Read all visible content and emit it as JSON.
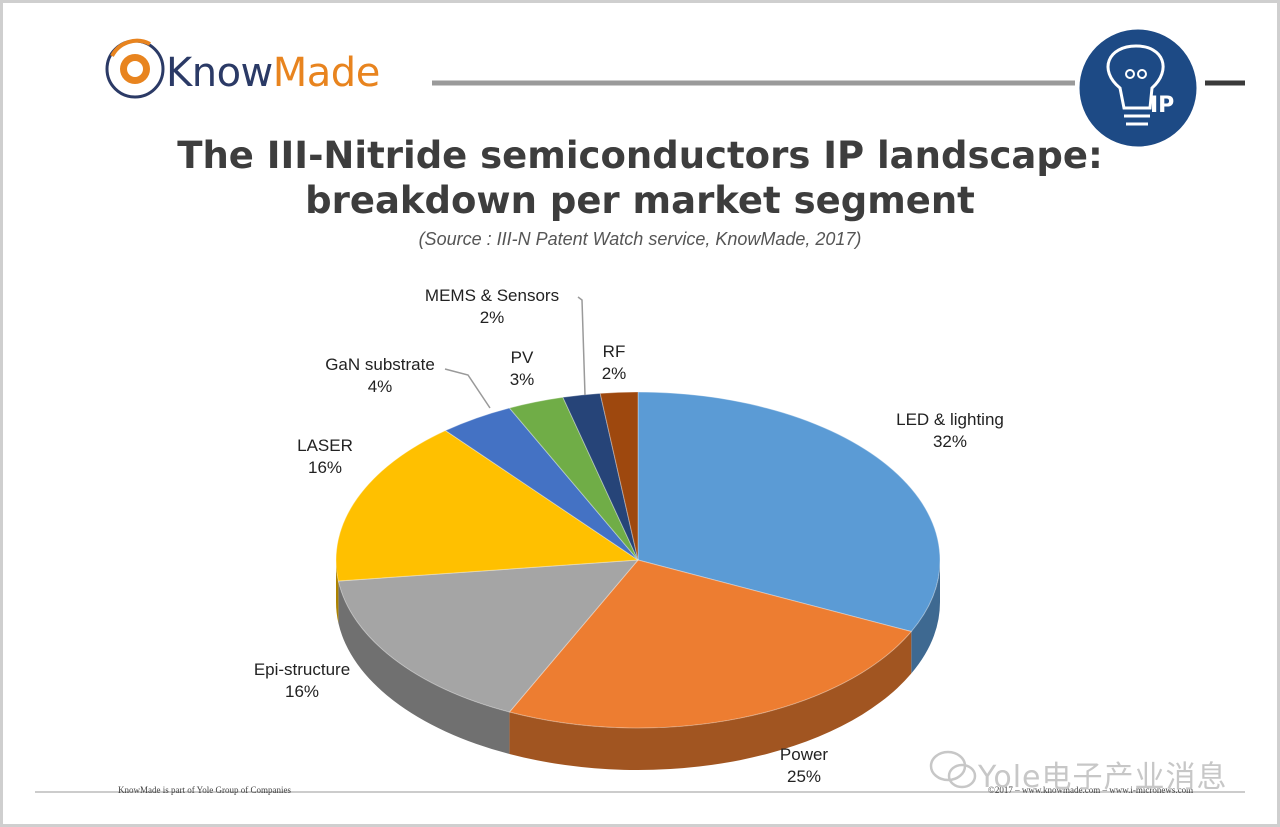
{
  "header": {
    "logo_part1": "Know",
    "logo_part2": "Made",
    "badge": "IP"
  },
  "colors": {
    "logo_blue": "#2b3a66",
    "logo_orange": "#e8841f",
    "badge_blue": "#1d4a85"
  },
  "chart_data": {
    "type": "pie",
    "title_line1": "The III-Nitride semiconductors IP landscape:",
    "title_line2": "breakdown per market segment",
    "subtitle": "(Source : III-N Patent Watch service, KnowMade, 2017)",
    "legend": "none",
    "slices": [
      {
        "name": "LED & lighting",
        "value": 32,
        "label": "32%",
        "color": "#5b9bd5"
      },
      {
        "name": "Power",
        "value": 25,
        "label": "25%",
        "color": "#ed7d31"
      },
      {
        "name": "Epi-structure",
        "value": 16,
        "label": "16%",
        "color": "#a5a5a5"
      },
      {
        "name": "LASER",
        "value": 16,
        "label": "16%",
        "color": "#ffc000"
      },
      {
        "name": "GaN substrate",
        "value": 4,
        "label": "4%",
        "color": "#4472c4"
      },
      {
        "name": "PV",
        "value": 3,
        "label": "3%",
        "color": "#70ad47"
      },
      {
        "name": "MEMS & Sensors",
        "value": 2,
        "label": "2%",
        "color": "#264478"
      },
      {
        "name": "RF",
        "value": 2,
        "label": "2%",
        "color": "#9e480e"
      }
    ]
  },
  "footer": {
    "left": "KnowMade is part of Yole Group of Companies",
    "right": "©2017 – www.knowmade.com – www.i-micronews.com",
    "watermark": "Yole电子产业消息"
  }
}
